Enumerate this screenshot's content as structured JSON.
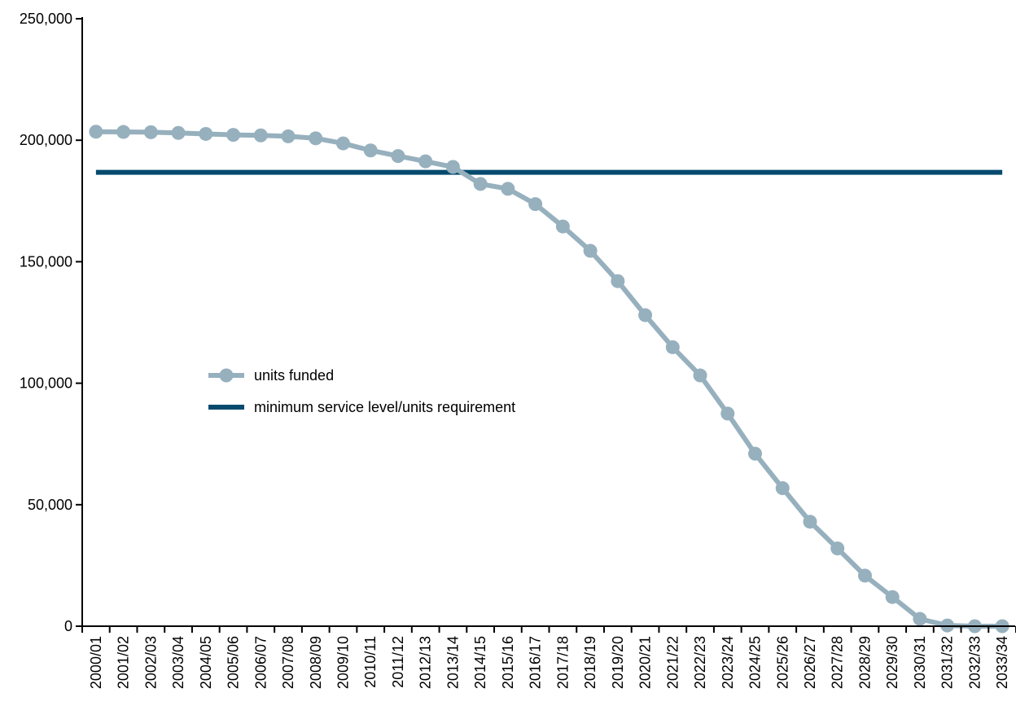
{
  "colors": {
    "units_funded": "#97b0be",
    "minimum_requirement": "#064a6e",
    "axis": "#000000"
  },
  "chart_data": {
    "type": "line",
    "title": "",
    "xlabel": "",
    "ylabel": "",
    "ylim": [
      0,
      250000
    ],
    "y_ticks": [
      0,
      50000,
      100000,
      150000,
      200000,
      250000
    ],
    "y_tick_labels": [
      "0",
      "50,000",
      "100,000",
      "150,000",
      "200,000",
      "250,000"
    ],
    "grid": false,
    "legend_placement": "center-left",
    "categories": [
      "2000/01",
      "2001/02",
      "2002/03",
      "2003/04",
      "2004/05",
      "2005/06",
      "2006/07",
      "2007/08",
      "2008/09",
      "2009/10",
      "2010/11",
      "2011/12",
      "2012/13",
      "2013/14",
      "2014/15",
      "2015/16",
      "2016/17",
      "2017/18",
      "2018/19",
      "2019/20",
      "2020/21",
      "2021/22",
      "2022/23",
      "2023/24",
      "2024/25",
      "2025/26",
      "2026/27",
      "2027/28",
      "2028/29",
      "2029/30",
      "2030/31",
      "2031/32",
      "2032/33",
      "2033/34"
    ],
    "series": [
      {
        "name": "units funded",
        "style": "line-with-markers",
        "values": [
          203500,
          203400,
          203300,
          203000,
          202600,
          202200,
          202000,
          201600,
          200800,
          198700,
          195800,
          193500,
          191300,
          189000,
          182000,
          180000,
          173700,
          164500,
          154500,
          142000,
          128000,
          114800,
          103200,
          87500,
          71000,
          56800,
          43000,
          32000,
          20800,
          12000,
          3000,
          300,
          0,
          0
        ]
      },
      {
        "name": "minimum service level/units requirement",
        "style": "line",
        "values": [
          186800,
          186800,
          186800,
          186800,
          186800,
          186800,
          186800,
          186800,
          186800,
          186800,
          186800,
          186800,
          186800,
          186800,
          186800,
          186800,
          186800,
          186800,
          186800,
          186800,
          186800,
          186800,
          186800,
          186800,
          186800,
          186800,
          186800,
          186800,
          186800,
          186800,
          186800,
          186800,
          186800,
          186800
        ]
      }
    ]
  }
}
